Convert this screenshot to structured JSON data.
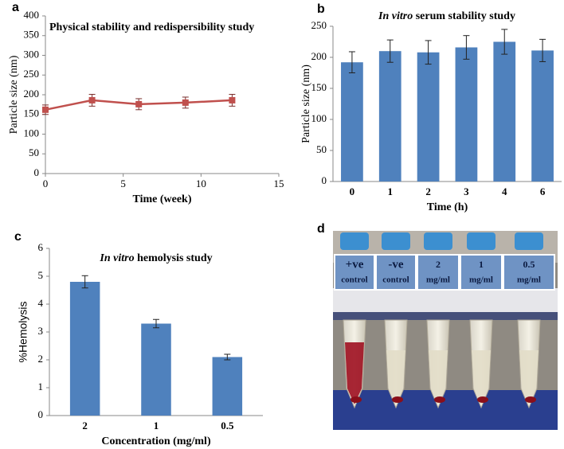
{
  "chart_data": [
    {
      "type": "line",
      "panel": "a",
      "title": "Physical stability and redispersibility study",
      "xlabel": "Time (week)",
      "ylabel": "Particle size (nm)",
      "x": [
        0,
        3,
        6,
        9,
        12
      ],
      "values": [
        162,
        186,
        176,
        180,
        186
      ],
      "errors": [
        12,
        15,
        14,
        14,
        15
      ],
      "color": "#c0504d",
      "xlim": [
        0,
        15
      ],
      "xticks": [
        0,
        5,
        10,
        15
      ],
      "ylim": [
        0,
        400
      ],
      "yticks": [
        0,
        50,
        100,
        150,
        200,
        250,
        300,
        350,
        400
      ]
    },
    {
      "type": "bar",
      "panel": "b",
      "title_italic": "In vitro",
      "title": "serum stability study",
      "xlabel": "Time (h)",
      "ylabel": "Particle size (nm)",
      "categories": [
        "0",
        "1",
        "2",
        "3",
        "4",
        "6"
      ],
      "values": [
        192,
        210,
        208,
        216,
        225,
        211
      ],
      "errors": [
        17,
        18,
        19,
        19,
        20,
        18
      ],
      "color": "#4f81bd",
      "ylim": [
        0,
        250
      ],
      "yticks": [
        0,
        50,
        100,
        150,
        200,
        250
      ]
    },
    {
      "type": "bar",
      "panel": "c",
      "title_italic": "In vitro",
      "title": "hemolysis study",
      "xlabel": "Concentration (mg/ml)",
      "ylabel": "%Hemolysis",
      "categories": [
        "2",
        "1",
        "0.5"
      ],
      "values": [
        4.8,
        3.3,
        2.1
      ],
      "errors": [
        0.22,
        0.15,
        0.1
      ],
      "color": "#4f81bd",
      "ylim": [
        0,
        6
      ],
      "yticks": [
        0,
        1,
        2,
        3,
        4,
        5,
        6
      ]
    }
  ],
  "photo": {
    "panel": "d",
    "labels": [
      [
        "+ve",
        "control"
      ],
      [
        "-ve",
        "control"
      ],
      [
        "2",
        "mg/ml"
      ],
      [
        "1",
        "mg/ml"
      ],
      [
        "0.5",
        "mg/ml"
      ]
    ]
  }
}
